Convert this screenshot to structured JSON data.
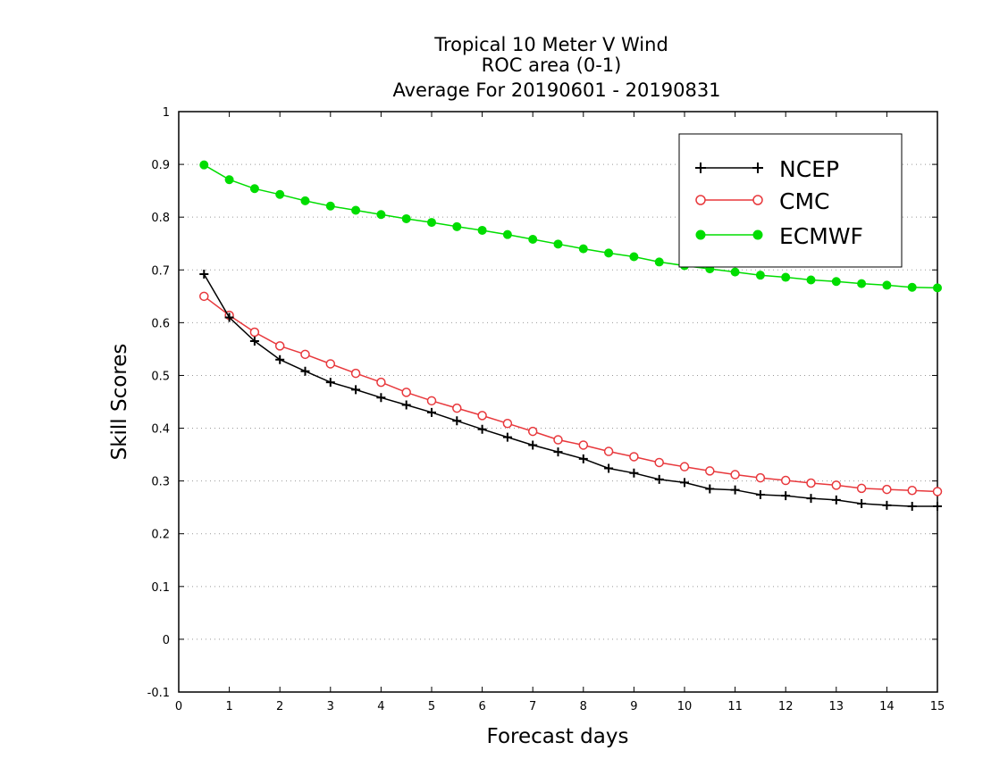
{
  "chart_data": {
    "type": "line",
    "title": [
      "Tropical 10 Meter V Wind",
      "ROC area (0-1)",
      "Average For 20190601 - 20190831"
    ],
    "xlabel": "Forecast days",
    "ylabel": "Skill Scores",
    "xlim": [
      0,
      15
    ],
    "ylim": [
      -0.1,
      1
    ],
    "xticks": [
      "0",
      "1",
      "2",
      "3",
      "4",
      "5",
      "6",
      "7",
      "8",
      "9",
      "10",
      "11",
      "12",
      "13",
      "14",
      "15"
    ],
    "yticks": [
      "-0.1",
      "0",
      "0.1",
      "0.2",
      "0.3",
      "0.4",
      "0.5",
      "0.6",
      "0.7",
      "0.8",
      "0.9",
      "1"
    ],
    "grid": "horizontal dotted",
    "legend_position": "top-right",
    "x": [
      0.5,
      1,
      1.5,
      2,
      2.5,
      3,
      3.5,
      4,
      4.5,
      5,
      5.5,
      6,
      6.5,
      7,
      7.5,
      8,
      8.5,
      9,
      9.5,
      10,
      10.5,
      11,
      11.5,
      12,
      12.5,
      13,
      13.5,
      14,
      14.5,
      15
    ],
    "series": [
      {
        "name": "NCEP",
        "color": "#000000",
        "marker": "plus",
        "values": [
          0.692,
          0.61,
          0.565,
          0.53,
          0.508,
          0.487,
          0.473,
          0.458,
          0.444,
          0.43,
          0.414,
          0.398,
          0.383,
          0.368,
          0.355,
          0.342,
          0.324,
          0.315,
          0.303,
          0.297,
          0.285,
          0.283,
          0.274,
          0.272,
          0.267,
          0.264,
          0.257,
          0.254,
          0.252,
          0.252
        ]
      },
      {
        "name": "CMC",
        "color": "#e8383c",
        "marker": "open-circle",
        "values": [
          0.65,
          0.614,
          0.582,
          0.556,
          0.54,
          0.522,
          0.504,
          0.487,
          0.468,
          0.452,
          0.438,
          0.424,
          0.409,
          0.394,
          0.378,
          0.368,
          0.356,
          0.346,
          0.335,
          0.327,
          0.319,
          0.312,
          0.306,
          0.301,
          0.296,
          0.292,
          0.286,
          0.284,
          0.282,
          0.28
        ]
      },
      {
        "name": "ECMWF",
        "color": "#00dd00",
        "marker": "filled-circle",
        "values": [
          0.899,
          0.871,
          0.854,
          0.843,
          0.831,
          0.821,
          0.813,
          0.805,
          0.797,
          0.79,
          0.782,
          0.775,
          0.767,
          0.758,
          0.749,
          0.74,
          0.732,
          0.725,
          0.715,
          0.708,
          0.702,
          0.696,
          0.69,
          0.686,
          0.681,
          0.678,
          0.674,
          0.671,
          0.667,
          0.666
        ]
      }
    ]
  }
}
